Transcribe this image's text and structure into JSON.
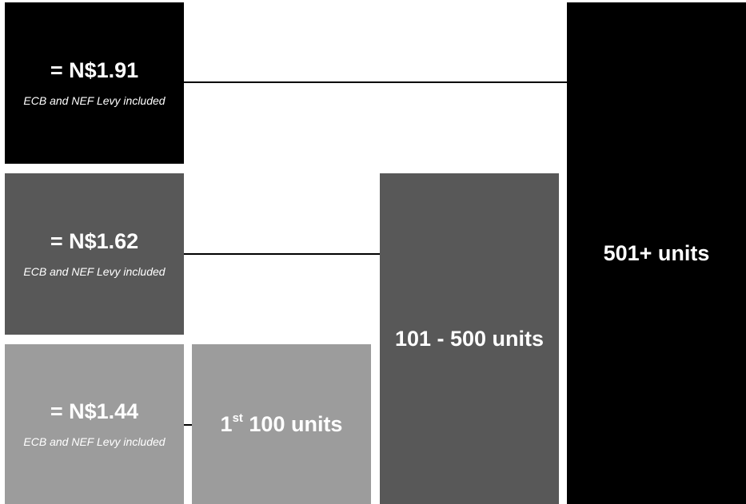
{
  "colors": {
    "tier3": "#000000",
    "tier2": "#585858",
    "tier1": "#9c9c9c",
    "connector": "#000000",
    "text": "#ffffff"
  },
  "tiers": [
    {
      "price": "= N$1.91",
      "note": "ECB and NEF Levy included",
      "units_label": "501+ units"
    },
    {
      "price": "= N$1.62",
      "note": "ECB and NEF Levy included",
      "units_label": "101 - 500 units"
    },
    {
      "price": "= N$1.44",
      "note": "ECB and NEF Levy included",
      "units_prefix": "1",
      "units_sup": "st",
      "units_suffix": " 100 units"
    }
  ]
}
